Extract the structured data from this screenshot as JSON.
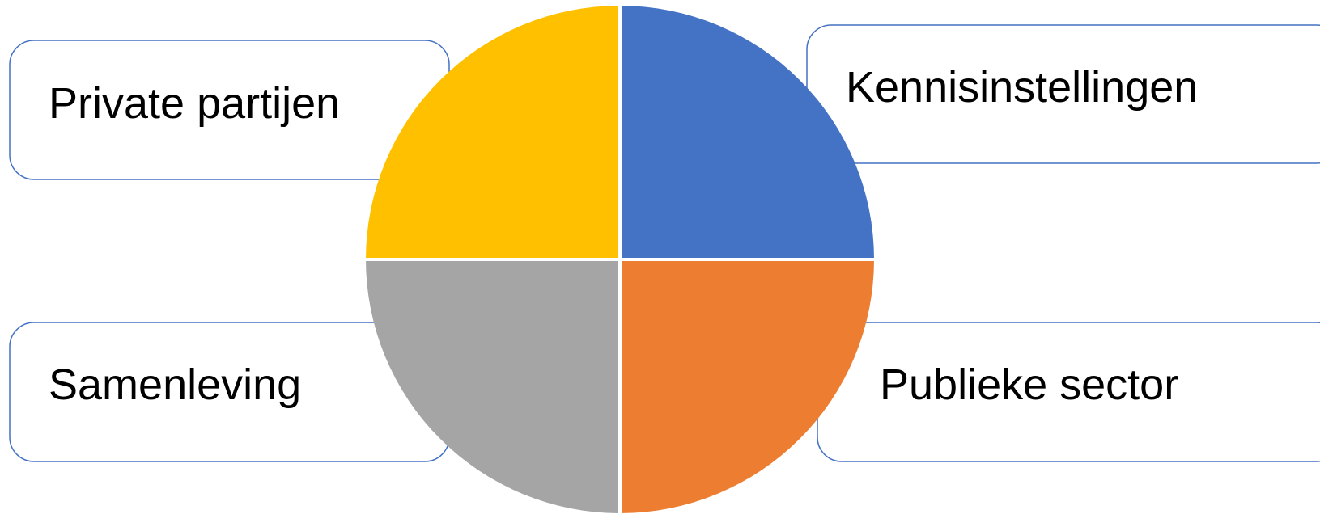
{
  "diagram": {
    "boxes": {
      "private": {
        "label": "Private partijen"
      },
      "knowledge": {
        "label": "Kennisinstellingen"
      },
      "society": {
        "label": "Samenleving"
      },
      "public": {
        "label": "Publieke sector"
      }
    },
    "quadrants": {
      "top_left": {
        "color": "#FFC000"
      },
      "top_right": {
        "color": "#4472C4"
      },
      "bottom_left": {
        "color": "#A5A5A5"
      },
      "bottom_right": {
        "color": "#ED7D31"
      }
    },
    "box_border_color": "#4472C4",
    "divider_color": "#FFFFFF"
  }
}
